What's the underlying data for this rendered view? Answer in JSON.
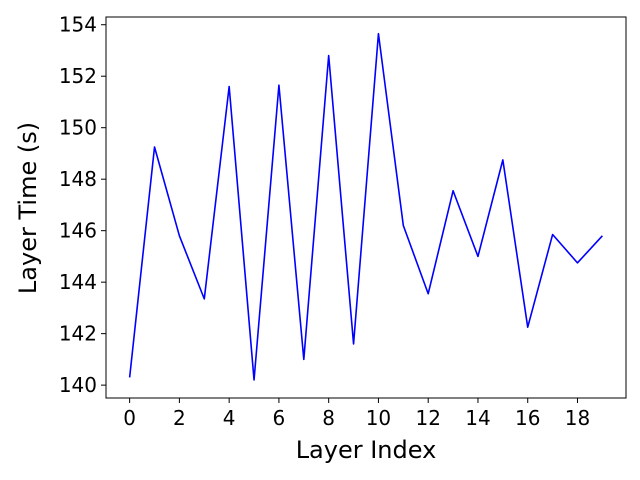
{
  "chart_data": {
    "type": "line",
    "title": "",
    "xlabel": "Layer Index",
    "ylabel": "Layer Time (s)",
    "xlim": [
      -0.95,
      19.95
    ],
    "ylim": [
      139.5,
      154.3
    ],
    "xticks": [
      0,
      2,
      4,
      6,
      8,
      10,
      12,
      14,
      16,
      18
    ],
    "yticks": [
      140,
      142,
      144,
      146,
      148,
      150,
      152,
      154
    ],
    "grid": false,
    "series": [
      {
        "color": "#0000ff",
        "x": [
          0,
          1,
          2,
          3,
          4,
          5,
          6,
          7,
          8,
          9,
          10,
          11,
          12,
          13,
          14,
          15,
          16,
          17,
          18,
          19
        ],
        "y": [
          140.3,
          149.25,
          145.8,
          143.35,
          151.6,
          140.2,
          151.65,
          141.0,
          152.8,
          141.6,
          153.65,
          146.2,
          143.55,
          147.55,
          145.0,
          148.75,
          142.25,
          145.85,
          144.75,
          145.8
        ]
      }
    ]
  }
}
